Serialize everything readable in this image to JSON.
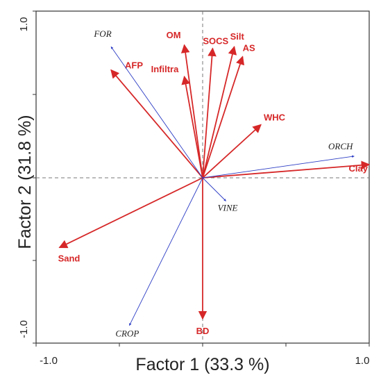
{
  "chart_data": {
    "type": "scatter",
    "subtype": "pca-biplot-loadings",
    "title": "",
    "xlabel": "Factor 1 (33.3 %)",
    "ylabel": "Factor 2 (31.8 %)",
    "xlim": [
      -1.0,
      1.0
    ],
    "ylim": [
      -1.0,
      1.0
    ],
    "xticks": [
      "-1.0",
      "1.0"
    ],
    "yticks": [
      "1.0",
      "-1.0"
    ],
    "grid": false,
    "zero_lines": "dashed",
    "series": [
      {
        "name": "",
        "color": "#d62728",
        "vectors": [
          {
            "label": "Clay",
            "x": 1.0,
            "y": 0.08
          },
          {
            "label": "Silt",
            "x": 0.19,
            "y": 0.79
          },
          {
            "label": "AS",
            "x": 0.24,
            "y": 0.73
          },
          {
            "label": "SOCS",
            "x": 0.06,
            "y": 0.78
          },
          {
            "label": "OM",
            "x": -0.11,
            "y": 0.8
          },
          {
            "label": "AFP",
            "x": -0.55,
            "y": 0.65
          },
          {
            "label": "Infiltra",
            "x": -0.11,
            "y": 0.61
          },
          {
            "label": "WHC",
            "x": 0.35,
            "y": 0.32
          },
          {
            "label": "Sand",
            "x": -0.86,
            "y": -0.42
          },
          {
            "label": "BD",
            "x": 0.0,
            "y": -0.85
          }
        ]
      },
      {
        "name": "",
        "color": "#2b3cc4",
        "vectors": [
          {
            "label": "FOR",
            "x": -0.55,
            "y": 0.79
          },
          {
            "label": "ORCH",
            "x": 0.91,
            "y": 0.13
          },
          {
            "label": "VINE",
            "x": 0.14,
            "y": -0.14
          },
          {
            "label": "CROP",
            "x": -0.44,
            "y": -0.89
          }
        ]
      }
    ]
  },
  "labels": {
    "xtick_min": "-1.0",
    "xtick_max": "1.0",
    "ytick_max": "1.0",
    "ytick_min": "-1.0",
    "xlabel": "Factor 1 (33.3 %)",
    "ylabel": "Factor 2 (31.8 %)"
  }
}
